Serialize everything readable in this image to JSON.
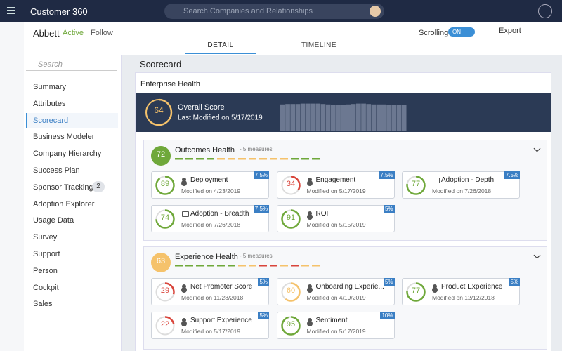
{
  "app": {
    "title": "Customer 360",
    "search_placeholder": "Search Companies and Relationships"
  },
  "company": {
    "name": "Abbett",
    "status": "Active",
    "follow": "Follow"
  },
  "controls": {
    "scrolling": "Scrolling",
    "toggle": "ON",
    "export": "Export"
  },
  "tabs": [
    "DETAIL",
    "TIMELINE"
  ],
  "sidebar": {
    "search": "Search",
    "items": [
      {
        "label": "Summary"
      },
      {
        "label": "Attributes"
      },
      {
        "label": "Scorecard"
      },
      {
        "label": "Business Modeler"
      },
      {
        "label": "Company Hierarchy"
      },
      {
        "label": "Success Plan"
      },
      {
        "label": "Sponsor Tracking",
        "count": 2
      },
      {
        "label": "Adoption Explorer"
      },
      {
        "label": "Usage Data"
      },
      {
        "label": "Survey"
      },
      {
        "label": "Support"
      },
      {
        "label": "Person"
      },
      {
        "label": "Cockpit"
      },
      {
        "label": "Sales"
      }
    ]
  },
  "scorecard": {
    "title": "Scorecard",
    "section": "Enterprise Health",
    "overall": {
      "label": "Overall Score",
      "score": 64,
      "modified": "Last Modified on 5/17/2019",
      "color": "#f5c26b",
      "trend": {
        "values": [
          62,
          63,
          63,
          63,
          64,
          64,
          64,
          64,
          63,
          62,
          61,
          61,
          61,
          62,
          63,
          64,
          64,
          63,
          62,
          62,
          62,
          61,
          61,
          61,
          60
        ],
        "ylim": [
          0,
          70
        ]
      }
    },
    "groups": [
      {
        "title": "Outcomes Health",
        "measures_count": "- 5 measures",
        "score": 72,
        "color": "#6fa83a",
        "dashes": [
          "#6fa83a",
          "#6fa83a",
          "#6fa83a",
          "#6fa83a",
          "#f5c26b",
          "#f5c26b",
          "#f5c26b",
          "#f5c26b",
          "#f5c26b",
          "#f5c26b",
          "#f5c26b",
          "#6fa83a",
          "#6fa83a",
          "#6fa83a"
        ],
        "measures": [
          {
            "name": "Deployment",
            "score": 89,
            "weight": "7.5%",
            "modified": "Modified on 4/23/2019",
            "icon": "person",
            "color": "#6fa83a"
          },
          {
            "name": "Engagement",
            "score": 34,
            "weight": "7.5%",
            "modified": "Modified on 5/17/2019",
            "icon": "person",
            "color": "#d9453b"
          },
          {
            "name": "Adoption - Depth",
            "score": 77,
            "weight": "7.5%",
            "modified": "Modified on 7/26/2018",
            "icon": "monitor",
            "color": "#6fa83a"
          },
          {
            "name": "Adoption - Breadth",
            "score": 74,
            "weight": "7.5%",
            "modified": "Modified on 7/26/2018",
            "icon": "monitor",
            "color": "#6fa83a"
          },
          {
            "name": "ROI",
            "score": 91,
            "weight": "5%",
            "modified": "Modified on 5/15/2019",
            "icon": "person",
            "color": "#6fa83a"
          }
        ]
      },
      {
        "title": "Experience Health",
        "measures_count": "- 5 measures",
        "score": 63,
        "color": "#f5c26b",
        "dashes": [
          "#6fa83a",
          "#6fa83a",
          "#6fa83a",
          "#6fa83a",
          "#6fa83a",
          "#6fa83a",
          "#f5c26b",
          "#f5c26b",
          "#d9453b",
          "#d9453b",
          "#f5c26b",
          "#d9453b",
          "#f5c26b",
          "#f5c26b"
        ],
        "measures": [
          {
            "name": "Net Promoter Score",
            "score": 29,
            "weight": "5%",
            "modified": "Modified on 11/28/2018",
            "icon": "person",
            "color": "#d9453b"
          },
          {
            "name": "Onboarding Experie...",
            "score": 60,
            "weight": "5%",
            "modified": "Modified on 4/19/2019",
            "icon": "person",
            "color": "#f5c26b"
          },
          {
            "name": "Product Experience",
            "score": 77,
            "weight": "5%",
            "modified": "Modified on 12/12/2018",
            "icon": "person",
            "color": "#6fa83a"
          },
          {
            "name": "Support Experience",
            "score": 22,
            "weight": "5%",
            "modified": "Modified on 5/17/2019",
            "icon": "person",
            "color": "#d9453b"
          },
          {
            "name": "Sentiment",
            "score": 95,
            "weight": "10%",
            "modified": "Modified on 5/17/2019",
            "icon": "person",
            "color": "#6fa83a"
          }
        ]
      }
    ]
  }
}
